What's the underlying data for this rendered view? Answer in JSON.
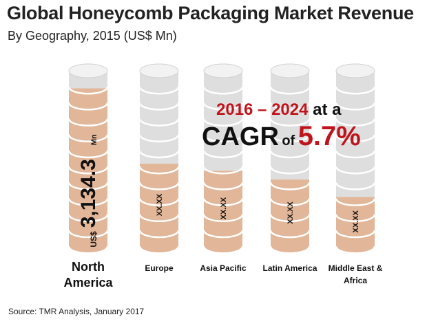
{
  "title": "Global Honeycomb Packaging Market Revenue",
  "subtitle": "By Geography, 2015 (US$ Mn)",
  "source": "Source: TMR Analysis, January 2017",
  "cagr": {
    "period": "2016 – 2024",
    "at_a": "at a",
    "cagr_word": "CAGR",
    "of_word": "of",
    "value": "5.7%"
  },
  "colors": {
    "filled": "#e2b698",
    "filled_edge": "#c59b7e",
    "empty": "#dedede",
    "empty_top": "#f2f2f2",
    "ring": "#ffffff",
    "accent": "#c0141c"
  },
  "chart_data": {
    "type": "bar",
    "categories": [
      "North America",
      "Europe",
      "Asia Pacific",
      "Latin America",
      "Middle East & Africa"
    ],
    "values": [
      3134.3,
      null,
      null,
      null,
      null
    ],
    "value_labels": [
      "3,134.3",
      "XX.XX",
      "XX.XX",
      "XX.XX",
      "XX.XX"
    ],
    "fill_fraction": [
      0.9,
      0.47,
      0.43,
      0.38,
      0.28
    ],
    "value_prefix": "US$",
    "value_unit": "Mn",
    "xlabel": "",
    "ylabel": ""
  }
}
